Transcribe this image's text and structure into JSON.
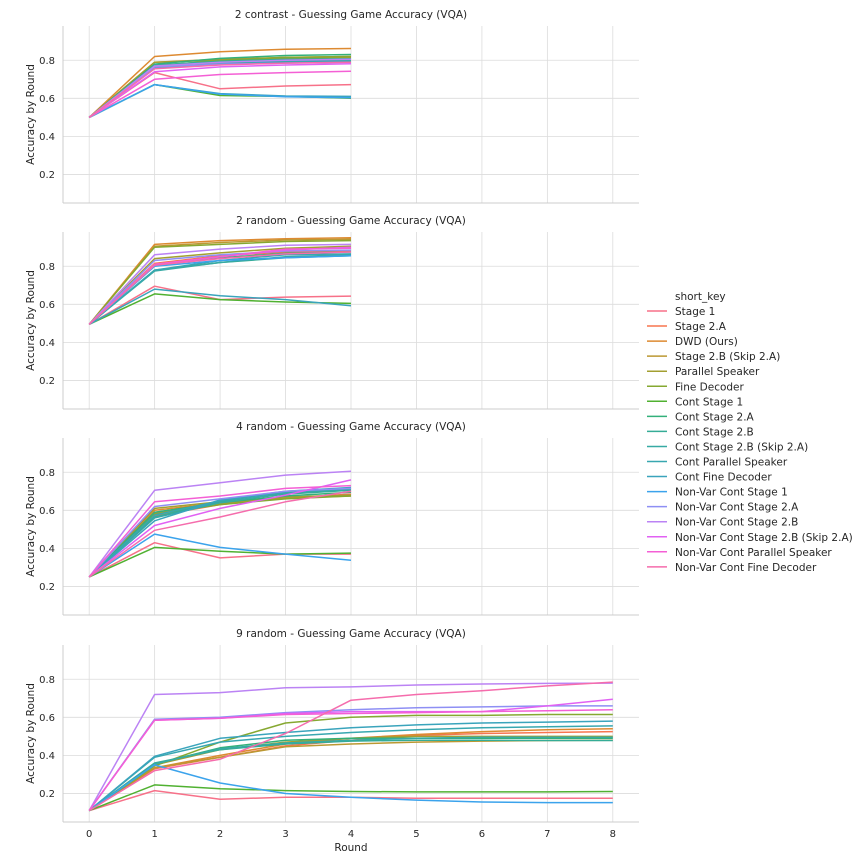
{
  "chart_data": [
    {
      "type": "line",
      "title": "2 contrast - Guessing Game Accuracy (VQA)",
      "ylabel": "Accuracy by Round",
      "xlabel": "",
      "ylim": [
        0.05,
        0.98
      ],
      "xlim": [
        -0.4,
        8.4
      ],
      "yticks": [
        0.2,
        0.4,
        0.6,
        0.8
      ],
      "x": [
        0,
        1,
        2,
        3,
        4
      ],
      "series": [
        {
          "name": "Stage 1",
          "values": [
            0.5,
            0.735,
            0.65,
            0.665,
            0.672
          ]
        },
        {
          "name": "Stage 2.A",
          "values": [
            0.5,
            0.76,
            0.785,
            0.795,
            0.8
          ]
        },
        {
          "name": "DWD (Ours)",
          "values": [
            0.5,
            0.82,
            0.845,
            0.858,
            0.862
          ]
        },
        {
          "name": "Stage 2.B (Skip 2.A)",
          "values": [
            0.5,
            0.79,
            0.805,
            0.815,
            0.82
          ]
        },
        {
          "name": "Parallel Speaker",
          "values": [
            0.5,
            0.79,
            0.8,
            0.81,
            0.815
          ]
        },
        {
          "name": "Fine Decoder",
          "values": [
            0.5,
            0.77,
            0.8,
            0.815,
            0.82
          ]
        },
        {
          "name": "Cont Stage 1",
          "values": [
            0.5,
            0.672,
            0.615,
            0.61,
            0.6
          ]
        },
        {
          "name": "Cont Stage 2.A",
          "values": [
            0.5,
            0.78,
            0.81,
            0.825,
            0.83
          ]
        },
        {
          "name": "Cont Stage 2.B",
          "values": [
            0.5,
            0.775,
            0.795,
            0.805,
            0.808
          ]
        },
        {
          "name": "Cont Stage 2.B (Skip 2.A)",
          "values": [
            0.5,
            0.765,
            0.785,
            0.795,
            0.8
          ]
        },
        {
          "name": "Cont Parallel Speaker",
          "values": [
            0.5,
            0.76,
            0.78,
            0.79,
            0.795
          ]
        },
        {
          "name": "Cont Fine Decoder",
          "values": [
            0.5,
            0.672,
            0.625,
            0.612,
            0.61
          ]
        },
        {
          "name": "Non-Var Cont Stage 1",
          "values": [
            0.5,
            0.672,
            0.622,
            0.608,
            0.603
          ]
        },
        {
          "name": "Non-Var Cont Stage 2.A",
          "values": [
            0.5,
            0.765,
            0.78,
            0.785,
            0.79
          ]
        },
        {
          "name": "Non-Var Cont Stage 2.B",
          "values": [
            0.5,
            0.77,
            0.79,
            0.8,
            0.805
          ]
        },
        {
          "name": "Non-Var Cont Stage 2.B (Skip 2.A)",
          "values": [
            0.5,
            0.74,
            0.765,
            0.775,
            0.782
          ]
        },
        {
          "name": "Non-Var Cont Parallel Speaker",
          "values": [
            0.5,
            0.7,
            0.725,
            0.735,
            0.742
          ]
        },
        {
          "name": "Non-Var Cont Fine Decoder",
          "values": [
            0.5,
            0.755,
            0.775,
            0.785,
            0.79
          ]
        }
      ]
    },
    {
      "type": "line",
      "title": "2 random - Guessing Game Accuracy (VQA)",
      "ylabel": "Accuracy by Round",
      "xlabel": "",
      "ylim": [
        0.05,
        0.98
      ],
      "xlim": [
        -0.4,
        8.4
      ],
      "yticks": [
        0.2,
        0.4,
        0.6,
        0.8
      ],
      "x": [
        0,
        1,
        2,
        3,
        4
      ],
      "series": [
        {
          "name": "Stage 1",
          "values": [
            0.495,
            0.695,
            0.625,
            0.638,
            0.643
          ]
        },
        {
          "name": "Stage 2.A",
          "values": [
            0.495,
            0.815,
            0.855,
            0.875,
            0.88
          ]
        },
        {
          "name": "DWD (Ours)",
          "values": [
            0.495,
            0.915,
            0.935,
            0.945,
            0.95
          ]
        },
        {
          "name": "Stage 2.B (Skip 2.A)",
          "values": [
            0.495,
            0.905,
            0.925,
            0.938,
            0.942
          ]
        },
        {
          "name": "Parallel Speaker",
          "values": [
            0.495,
            0.84,
            0.87,
            0.895,
            0.905
          ]
        },
        {
          "name": "Fine Decoder",
          "values": [
            0.495,
            0.9,
            0.915,
            0.93,
            0.935
          ]
        },
        {
          "name": "Cont Stage 1",
          "values": [
            0.495,
            0.655,
            0.625,
            0.612,
            0.605
          ]
        },
        {
          "name": "Cont Stage 2.A",
          "values": [
            0.495,
            0.805,
            0.845,
            0.868,
            0.875
          ]
        },
        {
          "name": "Cont Stage 2.B",
          "values": [
            0.495,
            0.78,
            0.82,
            0.845,
            0.855
          ]
        },
        {
          "name": "Cont Stage 2.B (Skip 2.A)",
          "values": [
            0.495,
            0.775,
            0.82,
            0.85,
            0.86
          ]
        },
        {
          "name": "Cont Parallel Speaker",
          "values": [
            0.495,
            0.78,
            0.83,
            0.86,
            0.865
          ]
        },
        {
          "name": "Cont Fine Decoder",
          "values": [
            0.495,
            0.68,
            0.645,
            0.625,
            0.592
          ]
        },
        {
          "name": "Non-Var Cont Stage 1",
          "values": [
            0.495,
            0.8,
            0.83,
            0.845,
            0.855
          ]
        },
        {
          "name": "Non-Var Cont Stage 2.A",
          "values": [
            0.495,
            0.83,
            0.86,
            0.88,
            0.885
          ]
        },
        {
          "name": "Non-Var Cont Stage 2.B",
          "values": [
            0.495,
            0.86,
            0.89,
            0.91,
            0.915
          ]
        },
        {
          "name": "Non-Var Cont Stage 2.B (Skip 2.A)",
          "values": [
            0.495,
            0.81,
            0.85,
            0.885,
            0.9
          ]
        },
        {
          "name": "Non-Var Cont Parallel Speaker",
          "values": [
            0.495,
            0.81,
            0.85,
            0.89,
            0.895
          ]
        },
        {
          "name": "Non-Var Cont Fine Decoder",
          "values": [
            0.495,
            0.805,
            0.84,
            0.865,
            0.875
          ]
        }
      ]
    },
    {
      "type": "line",
      "title": "4 random - Guessing Game Accuracy (VQA)",
      "ylabel": "Accuracy by Round",
      "xlabel": "",
      "ylim": [
        0.05,
        0.98
      ],
      "xlim": [
        -0.4,
        8.4
      ],
      "yticks": [
        0.2,
        0.4,
        0.6,
        0.8
      ],
      "x": [
        0,
        1,
        2,
        3,
        4
      ],
      "series": [
        {
          "name": "Stage 1",
          "values": [
            0.25,
            0.43,
            0.35,
            0.37,
            0.37
          ]
        },
        {
          "name": "Stage 2.A",
          "values": [
            0.25,
            0.57,
            0.63,
            0.665,
            0.685
          ]
        },
        {
          "name": "DWD (Ours)",
          "values": [
            0.25,
            0.6,
            0.64,
            0.665,
            0.675
          ]
        },
        {
          "name": "Stage 2.B (Skip 2.A)",
          "values": [
            0.25,
            0.585,
            0.635,
            0.665,
            0.68
          ]
        },
        {
          "name": "Parallel Speaker",
          "values": [
            0.25,
            0.61,
            0.645,
            0.67,
            0.68
          ]
        },
        {
          "name": "Fine Decoder",
          "values": [
            0.25,
            0.58,
            0.63,
            0.66,
            0.675
          ]
        },
        {
          "name": "Cont Stage 1",
          "values": [
            0.25,
            0.405,
            0.385,
            0.37,
            0.375
          ]
        },
        {
          "name": "Cont Stage 2.A",
          "values": [
            0.25,
            0.59,
            0.64,
            0.675,
            0.695
          ]
        },
        {
          "name": "Cont Stage 2.B",
          "values": [
            0.25,
            0.565,
            0.645,
            0.685,
            0.705
          ]
        },
        {
          "name": "Cont Stage 2.B (Skip 2.A)",
          "values": [
            0.25,
            0.56,
            0.64,
            0.69,
            0.71
          ]
        },
        {
          "name": "Cont Parallel Speaker",
          "values": [
            0.25,
            0.575,
            0.65,
            0.695,
            0.715
          ]
        },
        {
          "name": "Cont Fine Decoder",
          "values": [
            0.25,
            0.545,
            0.655,
            0.7,
            0.72
          ]
        },
        {
          "name": "Non-Var Cont Stage 1",
          "values": [
            0.25,
            0.475,
            0.405,
            0.37,
            0.338
          ]
        },
        {
          "name": "Non-Var Cont Stage 2.A",
          "values": [
            0.25,
            0.62,
            0.66,
            0.7,
            0.715
          ]
        },
        {
          "name": "Non-Var Cont Stage 2.B",
          "values": [
            0.25,
            0.705,
            0.745,
            0.785,
            0.805
          ]
        },
        {
          "name": "Non-Var Cont Stage 2.B (Skip 2.A)",
          "values": [
            0.25,
            0.52,
            0.61,
            0.68,
            0.76
          ]
        },
        {
          "name": "Non-Var Cont Parallel Speaker",
          "values": [
            0.25,
            0.645,
            0.675,
            0.715,
            0.73
          ]
        },
        {
          "name": "Non-Var Cont Fine Decoder",
          "values": [
            0.25,
            0.495,
            0.565,
            0.645,
            0.7
          ]
        }
      ]
    },
    {
      "type": "line",
      "title": "9 random - Guessing Game Accuracy (VQA)",
      "ylabel": "Accuracy by Round",
      "xlabel": "Round",
      "ylim": [
        0.05,
        0.98
      ],
      "xlim": [
        -0.4,
        8.4
      ],
      "yticks": [
        0.2,
        0.4,
        0.6,
        0.8
      ],
      "xticks": [
        0,
        1,
        2,
        3,
        4,
        5,
        6,
        7,
        8
      ],
      "x": [
        0,
        1,
        2,
        3,
        4,
        5,
        6,
        7,
        8
      ],
      "series": [
        {
          "name": "Stage 1",
          "values": [
            0.11,
            0.215,
            0.17,
            0.18,
            0.18,
            0.175,
            0.175,
            0.175,
            0.175
          ]
        },
        {
          "name": "Stage 2.A",
          "values": [
            0.11,
            0.33,
            0.39,
            0.45,
            0.48,
            0.505,
            0.515,
            0.52,
            0.525
          ]
        },
        {
          "name": "DWD (Ours)",
          "values": [
            0.11,
            0.335,
            0.4,
            0.46,
            0.49,
            0.51,
            0.525,
            0.535,
            0.54
          ]
        },
        {
          "name": "Stage 2.B (Skip 2.A)",
          "values": [
            0.11,
            0.335,
            0.39,
            0.445,
            0.46,
            0.47,
            0.475,
            0.478,
            0.48
          ]
        },
        {
          "name": "Parallel Speaker",
          "values": [
            0.11,
            0.35,
            0.43,
            0.47,
            0.49,
            0.5,
            0.5,
            0.5,
            0.5
          ]
        },
        {
          "name": "Fine Decoder",
          "values": [
            0.11,
            0.345,
            0.47,
            0.57,
            0.6,
            0.61,
            0.61,
            0.615,
            0.615
          ]
        },
        {
          "name": "Cont Stage 1",
          "values": [
            0.11,
            0.245,
            0.225,
            0.215,
            0.21,
            0.208,
            0.208,
            0.208,
            0.21
          ]
        },
        {
          "name": "Cont Stage 2.A",
          "values": [
            0.11,
            0.355,
            0.44,
            0.48,
            0.49,
            0.49,
            0.49,
            0.49,
            0.49
          ]
        },
        {
          "name": "Cont Stage 2.B",
          "values": [
            0.11,
            0.36,
            0.43,
            0.46,
            0.475,
            0.48,
            0.48,
            0.478,
            0.478
          ]
        },
        {
          "name": "Cont Stage 2.B (Skip 2.A)",
          "values": [
            0.11,
            0.355,
            0.435,
            0.465,
            0.48,
            0.49,
            0.495,
            0.495,
            0.495
          ]
        },
        {
          "name": "Cont Parallel Speaker",
          "values": [
            0.11,
            0.39,
            0.47,
            0.5,
            0.52,
            0.535,
            0.545,
            0.55,
            0.555
          ]
        },
        {
          "name": "Cont Fine Decoder",
          "values": [
            0.11,
            0.395,
            0.49,
            0.52,
            0.545,
            0.56,
            0.57,
            0.575,
            0.58
          ]
        },
        {
          "name": "Non-Var Cont Stage 1",
          "values": [
            0.11,
            0.35,
            0.255,
            0.2,
            0.18,
            0.165,
            0.155,
            0.152,
            0.152
          ]
        },
        {
          "name": "Non-Var Cont Stage 2.A",
          "values": [
            0.11,
            0.59,
            0.6,
            0.625,
            0.64,
            0.65,
            0.655,
            0.66,
            0.66
          ]
        },
        {
          "name": "Non-Var Cont Stage 2.B",
          "values": [
            0.11,
            0.72,
            0.73,
            0.755,
            0.76,
            0.77,
            0.775,
            0.778,
            0.78
          ]
        },
        {
          "name": "Non-Var Cont Stage 2.B (Skip 2.A)",
          "values": [
            0.11,
            0.585,
            0.595,
            0.62,
            0.63,
            0.63,
            0.63,
            0.66,
            0.695
          ]
        },
        {
          "name": "Non-Var Cont Parallel Speaker",
          "values": [
            0.11,
            0.585,
            0.595,
            0.615,
            0.62,
            0.625,
            0.63,
            0.635,
            0.64
          ]
        },
        {
          "name": "Non-Var Cont Fine Decoder",
          "values": [
            0.11,
            0.32,
            0.38,
            0.515,
            0.69,
            0.72,
            0.74,
            0.765,
            0.785
          ]
        }
      ]
    }
  ],
  "legend": {
    "title": "short_key",
    "placement": "right",
    "items": [
      {
        "label": "Stage 1",
        "color": "#f77189"
      },
      {
        "label": "Stage 2.A",
        "color": "#f7754f"
      },
      {
        "label": "DWD (Ours)",
        "color": "#dd8a31"
      },
      {
        "label": "Stage 2.B (Skip 2.A)",
        "color": "#bb9832"
      },
      {
        "label": "Parallel Speaker",
        "color": "#a39f31"
      },
      {
        "label": "Fine Decoder",
        "color": "#86a831"
      },
      {
        "label": "Cont Stage 1",
        "color": "#50b131"
      },
      {
        "label": "Cont Stage 2.A",
        "color": "#33b07a"
      },
      {
        "label": "Cont Stage 2.B",
        "color": "#35ac96"
      },
      {
        "label": "Cont Stage 2.B (Skip 2.A)",
        "color": "#37aaa4"
      },
      {
        "label": "Cont Parallel Speaker",
        "color": "#38a7b0"
      },
      {
        "label": "Cont Fine Decoder",
        "color": "#3aa4bc"
      },
      {
        "label": "Non-Var Cont Stage 1",
        "color": "#3ba3ec"
      },
      {
        "label": "Non-Var Cont Stage 2.A",
        "color": "#8e8ff4"
      },
      {
        "label": "Non-Var Cont Stage 2.B",
        "color": "#bb83f4"
      },
      {
        "label": "Non-Var Cont Stage 2.B (Skip 2.A)",
        "color": "#e161f3"
      },
      {
        "label": "Non-Var Cont Parallel Speaker",
        "color": "#f45fd5"
      },
      {
        "label": "Non-Var Cont Fine Decoder",
        "color": "#f56cac"
      }
    ]
  }
}
